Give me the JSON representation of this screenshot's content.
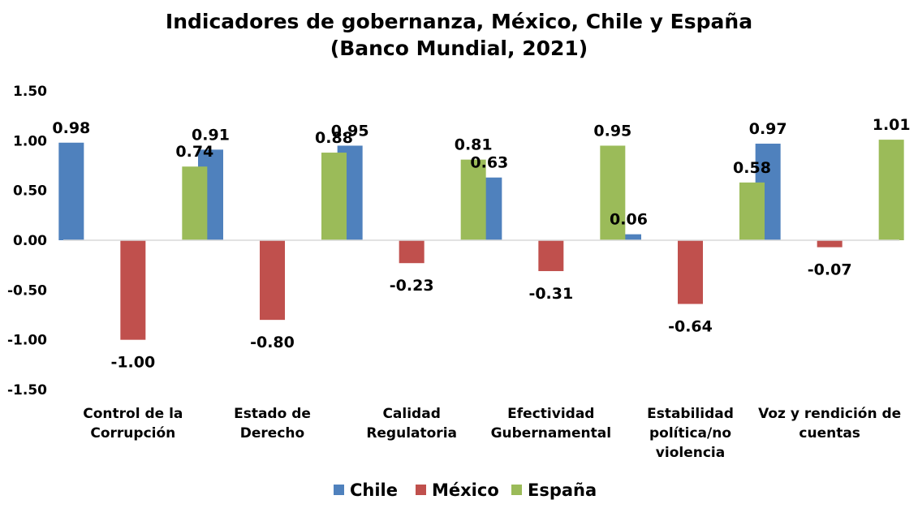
{
  "title_line1": "Indicadores de gobernanza, México, Chile y España",
  "title_line2": "(Banco Mundial, 2021)",
  "chart_data": {
    "type": "bar",
    "title": "Indicadores de gobernanza, México, Chile y España (Banco Mundial, 2021)",
    "categories": [
      [
        "Control de la",
        "Corrupción"
      ],
      [
        "Estado de",
        "Derecho"
      ],
      [
        "Calidad",
        "Regulatoria"
      ],
      [
        "Efectividad",
        "Gubernamental"
      ],
      [
        "Estabilidad",
        "política/no",
        "violencia"
      ],
      [
        "Voz y rendición de",
        "cuentas"
      ]
    ],
    "series": [
      {
        "name": "Chile",
        "color": "#4f81bd",
        "values": [
          0.98,
          0.91,
          0.95,
          0.63,
          0.06,
          0.97
        ]
      },
      {
        "name": "México",
        "color": "#c0504d",
        "values": [
          -1.0,
          -0.8,
          -0.23,
          -0.31,
          -0.64,
          -0.07
        ]
      },
      {
        "name": "España",
        "color": "#9bbb59",
        "values": [
          0.74,
          0.88,
          0.81,
          0.95,
          0.58,
          1.01
        ]
      }
    ],
    "ylim": [
      -1.5,
      1.5
    ],
    "yticks": [
      "1.50",
      "1.00",
      "0.50",
      "0.00",
      "-0.50",
      "-1.00",
      "-1.50"
    ],
    "data_labels": true,
    "grid": false,
    "legend_position": "bottom",
    "xlabel": "",
    "ylabel": ""
  }
}
